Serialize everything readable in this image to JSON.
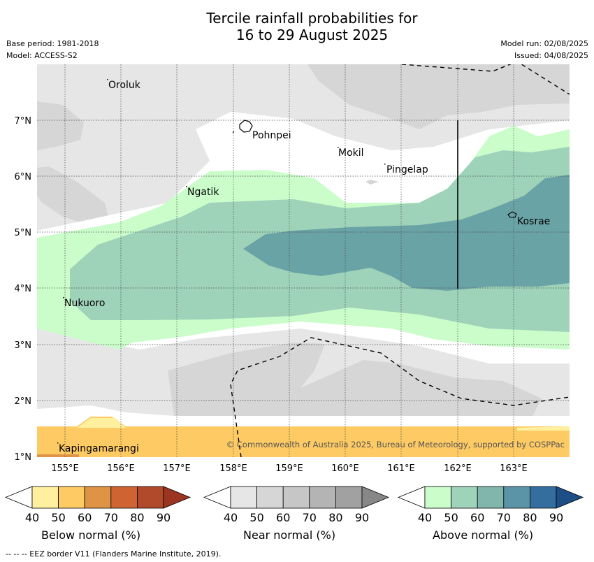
{
  "title": {
    "line1": "Tercile rainfall probabilities for",
    "line2": "16 to 29 August 2025"
  },
  "meta_left": {
    "base_period": "Base period: 1981-2018",
    "model": "Model: ACCESS-S2"
  },
  "meta_right": {
    "model_run": "Model run: 02/08/2025",
    "issued": "Issued: 04/08/2025"
  },
  "map": {
    "lon_ticks": [
      "155°E",
      "156°E",
      "157°E",
      "158°E",
      "159°E",
      "160°E",
      "161°E",
      "162°E",
      "163°E"
    ],
    "lat_ticks": [
      "7°N",
      "6°N",
      "5°N",
      "4°N",
      "3°N",
      "2°N",
      "1°N"
    ],
    "places": {
      "oroluk": "Oroluk",
      "pohnpei": "Pohnpei",
      "mokil": "Mokil",
      "pingelap": "Pingelap",
      "ngatik": "Ngatik",
      "kosrae": "Kosrae",
      "nukuoro": "Nukuoro",
      "kapingamarangi": "Kapingamarangi"
    },
    "copyright": "© Commonwealth of Australia 2025, Bureau of Meteorology, supported by COSPPac"
  },
  "colorbars": {
    "below": {
      "title": "Below normal (%)",
      "ticks": [
        "40",
        "50",
        "60",
        "70",
        "80",
        "90"
      ],
      "colors": [
        "#fff0a0",
        "#fdca63",
        "#df9445",
        "#cf6432",
        "#b04a2a",
        "#9b3420"
      ]
    },
    "near": {
      "title": "Near normal (%)",
      "ticks": [
        "40",
        "50",
        "60",
        "70",
        "80",
        "90"
      ],
      "colors": [
        "#e6e6e6",
        "#d6d6d6",
        "#c6c6c6",
        "#b4b4b4",
        "#a1a1a1",
        "#878787"
      ]
    },
    "above": {
      "title": "Above normal (%)",
      "ticks": [
        "40",
        "50",
        "60",
        "70",
        "80",
        "90"
      ],
      "colors": [
        "#cbfdcb",
        "#9ed3b9",
        "#80b6ab",
        "#5b94a6",
        "#346e9e",
        "#1d4e86"
      ]
    }
  },
  "footnote": "--  --  -- EEZ border V11 (Flanders Marine Institute, 2019)."
}
